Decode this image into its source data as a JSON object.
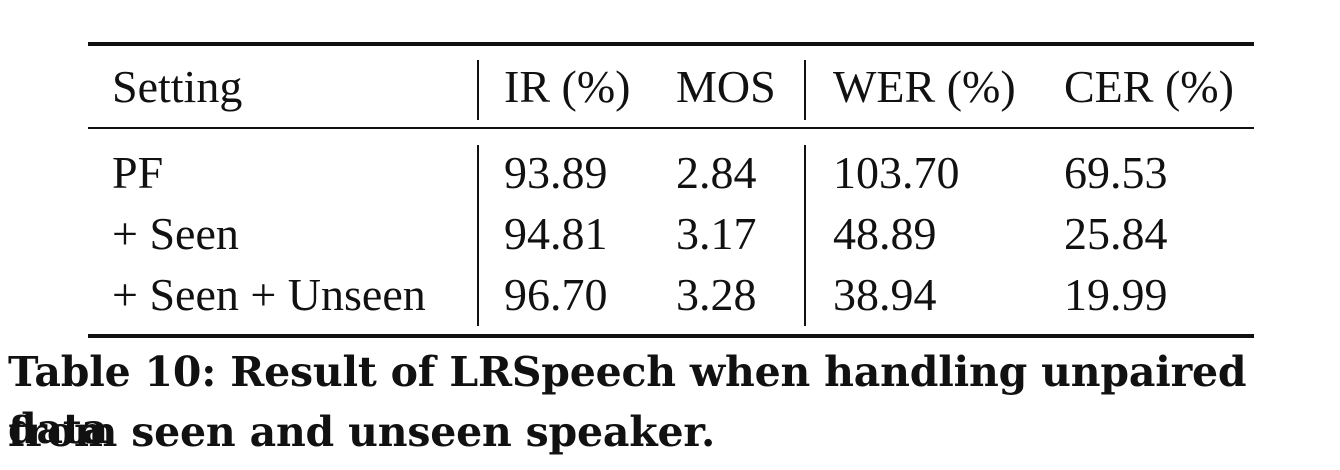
{
  "table": {
    "headers": [
      "Setting",
      "IR (%)",
      "MOS",
      "WER (%)",
      "CER (%)"
    ],
    "rows": [
      [
        "PF",
        "93.89",
        "2.84",
        "103.70",
        "69.53"
      ],
      [
        "+ Seen",
        "94.81",
        "3.17",
        "48.89",
        "25.84"
      ],
      [
        "+ Seen + Unseen",
        "96.70",
        "3.28",
        "38.94",
        "19.99"
      ]
    ]
  },
  "caption": {
    "line1": "Table 10: Result of LRSpeech when handling unpaired data",
    "line2": "from seen and unseen speaker."
  }
}
